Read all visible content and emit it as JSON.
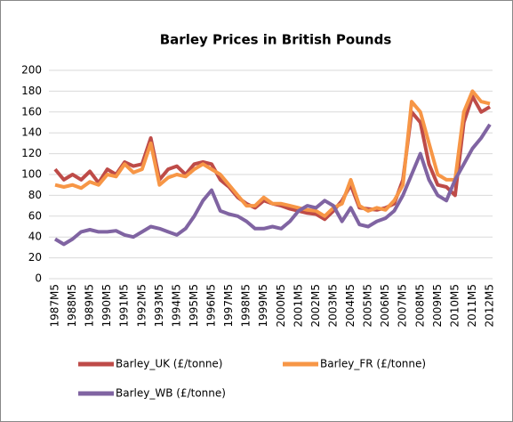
{
  "chart_data": {
    "type": "line",
    "title": "Barley Prices in British Pounds",
    "categories": [
      "1987M5",
      null,
      "1988M5",
      null,
      "1989M5",
      null,
      "1990M5",
      null,
      "1991M5",
      null,
      "1992M5",
      null,
      "1993M5",
      null,
      "1994M5",
      null,
      "1995M5",
      null,
      "1996M5",
      null,
      "1997M5",
      null,
      "1998M5",
      null,
      "1999M5",
      null,
      "2000M5",
      null,
      "2001M5",
      null,
      "2002M5",
      null,
      "2003M5",
      null,
      "2004M5",
      null,
      "2005M5",
      null,
      "2006M5",
      null,
      "2007M5",
      null,
      "2008M5",
      null,
      "2009M5",
      null,
      "2010M5",
      null,
      "2011M5",
      null,
      "2012M5"
    ],
    "series": [
      {
        "name": "Barley_UK (£/tonne)",
        "color": "#be4b48",
        "values": [
          105,
          95,
          100,
          95,
          103,
          92,
          105,
          100,
          112,
          108,
          110,
          135,
          95,
          105,
          108,
          100,
          110,
          112,
          110,
          95,
          88,
          78,
          72,
          68,
          75,
          72,
          70,
          67,
          65,
          63,
          62,
          57,
          65,
          75,
          90,
          68,
          67,
          66,
          68,
          72,
          95,
          160,
          150,
          110,
          90,
          88,
          80,
          150,
          175,
          160,
          165
        ]
      },
      {
        "name": "Barley_FR (£/tonne)",
        "color": "#f79646",
        "values": [
          90,
          88,
          90,
          87,
          93,
          90,
          100,
          98,
          110,
          102,
          105,
          130,
          90,
          97,
          100,
          98,
          105,
          110,
          105,
          100,
          90,
          80,
          70,
          70,
          78,
          72,
          72,
          70,
          68,
          66,
          65,
          60,
          68,
          72,
          95,
          70,
          65,
          68,
          66,
          75,
          90,
          170,
          160,
          130,
          100,
          95,
          95,
          160,
          180,
          170,
          168
        ]
      },
      {
        "name": "Barley_WB (£/tonne)",
        "color": "#8064a2",
        "values": [
          38,
          33,
          38,
          45,
          47,
          45,
          45,
          46,
          42,
          40,
          45,
          50,
          48,
          45,
          42,
          48,
          60,
          75,
          85,
          65,
          62,
          60,
          55,
          48,
          48,
          50,
          48,
          55,
          65,
          70,
          68,
          75,
          70,
          55,
          68,
          52,
          50,
          55,
          58,
          65,
          80,
          100,
          120,
          95,
          80,
          75,
          95,
          110,
          125,
          135,
          148
        ]
      }
    ],
    "ylim": [
      0,
      200
    ],
    "yticks": [
      0,
      20,
      40,
      60,
      80,
      100,
      120,
      140,
      160,
      180,
      200
    ],
    "grid": true
  }
}
